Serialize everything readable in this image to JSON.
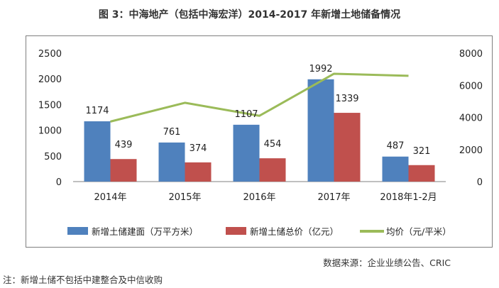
{
  "chart_data": {
    "type": "bar",
    "title": "图 3：中海地产（包括中海宏洋）2014-2017 年新增土地储备情况",
    "categories": [
      "2014年",
      "2015年",
      "2016年",
      "2017年",
      "2018年1-2月"
    ],
    "series": [
      {
        "name": "新增土储建面（万平方米）",
        "type": "bar",
        "axis": "left",
        "color": "#4f81bd",
        "values": [
          1174,
          761,
          1107,
          1992,
          487
        ]
      },
      {
        "name": "新增土储总价（亿元）",
        "type": "bar",
        "axis": "left",
        "color": "#c0504d",
        "values": [
          439,
          374,
          454,
          1339,
          321
        ]
      },
      {
        "name": "均价（元/平米）",
        "type": "line",
        "axis": "right",
        "color": "#9bbb59",
        "values": [
          3740,
          4910,
          4100,
          6720,
          6590
        ]
      }
    ],
    "left_axis": {
      "min": 0,
      "max": 2500,
      "ticks": [
        0,
        500,
        1000,
        1500,
        2000,
        2500
      ]
    },
    "right_axis": {
      "min": 0,
      "max": 8000,
      "ticks": [
        0,
        2000,
        4000,
        6000,
        8000
      ]
    },
    "legend_position": "bottom"
  },
  "source": "数据来源：企业业绩公告、CRIC",
  "note": "注：新增土储不包括中建整合及中信收购"
}
